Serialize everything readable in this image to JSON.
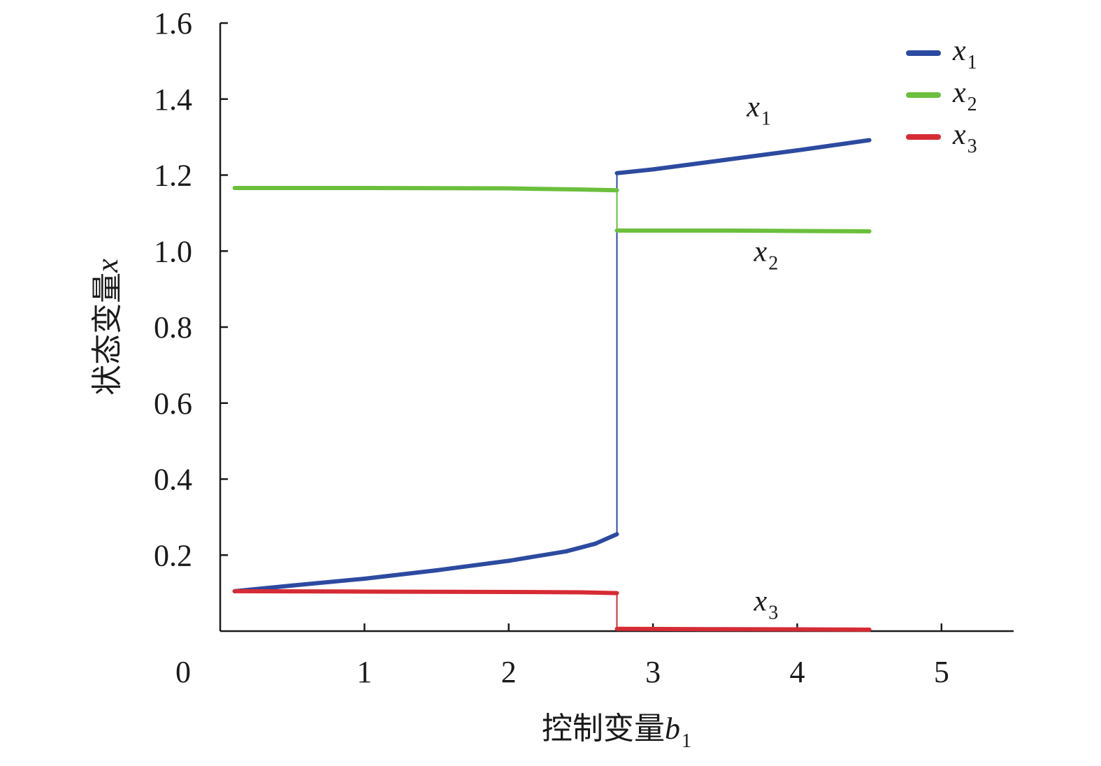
{
  "chart_data": {
    "type": "line",
    "xlabel": {
      "text": "控制变量",
      "var": "b",
      "sub": "1"
    },
    "ylabel": {
      "text": "状态变量",
      "var": "x"
    },
    "xlim": [
      0,
      5.5
    ],
    "ylim": [
      0,
      1.6
    ],
    "x_ticks": [
      0,
      1,
      2,
      3,
      4,
      5
    ],
    "x_tick_labels": [
      "0",
      "1",
      "2",
      "3",
      "4",
      "5"
    ],
    "y_ticks": [
      0.2,
      0.4,
      0.6,
      0.8,
      1.0,
      1.2,
      1.4,
      1.6
    ],
    "y_tick_labels": [
      "0.2",
      "0.4",
      "0.6",
      "0.8",
      "1.0",
      "1.2",
      "1.4",
      "1.6"
    ],
    "grid": false,
    "legend_position": "top-right",
    "series": [
      {
        "name": "x",
        "sub": "1",
        "color": "#2c4aa0",
        "x": [
          0.1,
          0.5,
          1.0,
          1.5,
          2.0,
          2.4,
          2.6,
          2.75,
          2.75,
          3.0,
          3.5,
          4.0,
          4.5
        ],
        "y": [
          0.105,
          0.12,
          0.138,
          0.16,
          0.185,
          0.21,
          0.23,
          0.255,
          1.205,
          1.215,
          1.24,
          1.265,
          1.292
        ]
      },
      {
        "name": "x",
        "sub": "2",
        "color": "#6bbf3c",
        "x": [
          0.1,
          1.0,
          2.0,
          2.5,
          2.75,
          2.75,
          3.5,
          4.5
        ],
        "y": [
          1.166,
          1.166,
          1.165,
          1.162,
          1.16,
          1.054,
          1.054,
          1.052
        ]
      },
      {
        "name": "x",
        "sub": "3",
        "color": "#d62b35",
        "x": [
          0.1,
          1.0,
          2.0,
          2.5,
          2.75,
          2.75,
          3.5,
          4.5
        ],
        "y": [
          0.105,
          0.104,
          0.103,
          0.102,
          0.1,
          0.006,
          0.005,
          0.004
        ]
      }
    ],
    "annotations": [
      {
        "var": "x",
        "sub": "1",
        "x": 3.65,
        "y": 1.38
      },
      {
        "var": "x",
        "sub": "2",
        "x": 3.7,
        "y": 1.0
      },
      {
        "var": "x",
        "sub": "3",
        "x": 3.7,
        "y": 0.08
      }
    ]
  }
}
